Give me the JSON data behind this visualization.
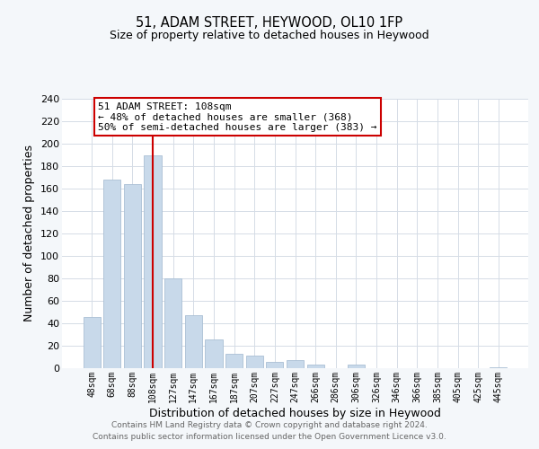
{
  "title": "51, ADAM STREET, HEYWOOD, OL10 1FP",
  "subtitle": "Size of property relative to detached houses in Heywood",
  "bar_labels": [
    "48sqm",
    "68sqm",
    "88sqm",
    "108sqm",
    "127sqm",
    "147sqm",
    "167sqm",
    "187sqm",
    "207sqm",
    "227sqm",
    "247sqm",
    "266sqm",
    "286sqm",
    "306sqm",
    "326sqm",
    "346sqm",
    "366sqm",
    "385sqm",
    "405sqm",
    "425sqm",
    "445sqm"
  ],
  "bar_values": [
    46,
    168,
    164,
    190,
    80,
    47,
    26,
    13,
    11,
    6,
    7,
    3,
    0,
    3,
    0,
    0,
    0,
    0,
    0,
    0,
    1
  ],
  "bar_color": "#c8d9ea",
  "bar_edge_color": "#aabfd4",
  "vline_x_index": 3,
  "vline_color": "#cc0000",
  "annotation_title": "51 ADAM STREET: 108sqm",
  "annotation_line1": "← 48% of detached houses are smaller (368)",
  "annotation_line2": "50% of semi-detached houses are larger (383) →",
  "annotation_box_facecolor": "#ffffff",
  "annotation_box_edgecolor": "#cc0000",
  "xlabel": "Distribution of detached houses by size in Heywood",
  "ylabel": "Number of detached properties",
  "ylim": [
    0,
    240
  ],
  "yticks": [
    0,
    20,
    40,
    60,
    80,
    100,
    120,
    140,
    160,
    180,
    200,
    220,
    240
  ],
  "footer_line1": "Contains HM Land Registry data © Crown copyright and database right 2024.",
  "footer_line2": "Contains public sector information licensed under the Open Government Licence v3.0.",
  "fig_facecolor": "#f4f7fa",
  "plot_facecolor": "#ffffff",
  "grid_color": "#d5dce6"
}
